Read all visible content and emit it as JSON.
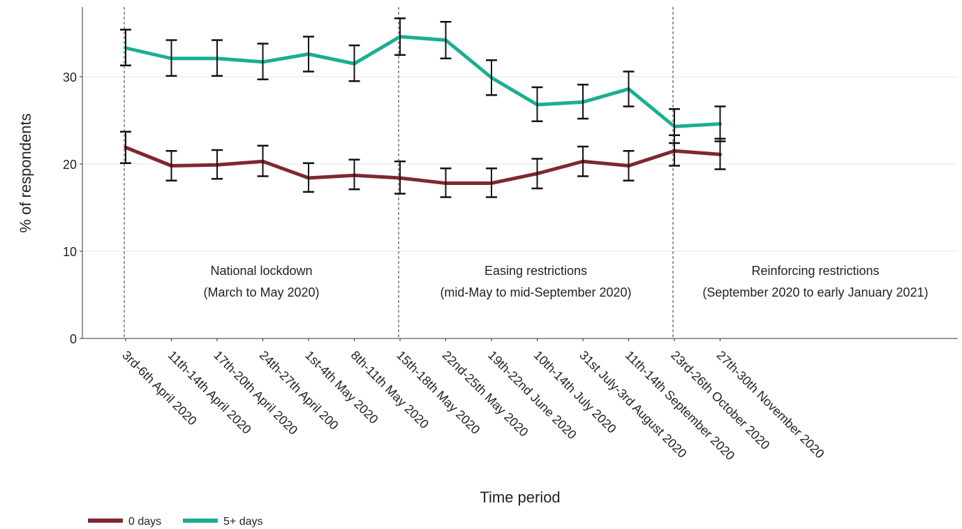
{
  "chart_data": {
    "type": "line",
    "xlabel": "Time period",
    "ylabel": "% of respondents",
    "ylim": [
      0,
      38
    ],
    "yticks": [
      0,
      10,
      20,
      30
    ],
    "grid": true,
    "legend": "bottom-left",
    "categories": [
      "3rd-6th April 2020",
      "11th-14th April 2020",
      "17th-20th April 2020",
      "24th-27th April 200",
      "1st-4th May 2020",
      "8th-11th May 2020",
      "15th-18th May 2020",
      "22nd-25th May 2020",
      "19th-22nd June 2020",
      "10th-14th July 2020",
      "31st July-3rd August 2020",
      "11th-14th September 2020",
      "23rd-26th October 2020",
      "27th-30th November 2020"
    ],
    "series": [
      {
        "name": "0 days",
        "color": "#7f2730",
        "values": [
          21.9,
          19.8,
          19.9,
          20.3,
          18.4,
          18.7,
          18.4,
          17.8,
          17.8,
          18.9,
          20.3,
          19.8,
          21.5,
          21.1
        ],
        "error_low": [
          20.1,
          18.1,
          18.3,
          18.6,
          16.8,
          17.1,
          16.6,
          16.2,
          16.2,
          17.2,
          18.6,
          18.1,
          19.8,
          19.4
        ],
        "error_high": [
          23.7,
          21.5,
          21.6,
          22.1,
          20.1,
          20.5,
          20.3,
          19.5,
          19.5,
          20.6,
          22.0,
          21.5,
          23.3,
          22.9
        ]
      },
      {
        "name": "5+ days",
        "color": "#1aae92",
        "values": [
          33.3,
          32.1,
          32.1,
          31.7,
          32.6,
          31.5,
          34.6,
          34.2,
          29.9,
          26.8,
          27.1,
          28.6,
          24.3,
          24.6
        ],
        "error_low": [
          31.3,
          30.1,
          30.1,
          29.7,
          30.6,
          29.5,
          32.5,
          32.1,
          27.9,
          24.9,
          25.2,
          26.6,
          22.4,
          22.6
        ],
        "error_high": [
          35.4,
          34.2,
          34.2,
          33.8,
          34.6,
          33.6,
          36.7,
          36.3,
          31.9,
          28.8,
          29.1,
          30.6,
          26.3,
          26.6
        ]
      }
    ],
    "periods": [
      {
        "line1": "National lockdown",
        "line2": "(March to May 2020)",
        "start_index": 0
      },
      {
        "line1": "Easing restrictions",
        "line2": "(mid-May to mid-September 2020)",
        "start_index": 6
      },
      {
        "line1": "Reinforcing restrictions",
        "line2": "(September 2020 to early January 2021)",
        "start_index": 12
      }
    ]
  }
}
